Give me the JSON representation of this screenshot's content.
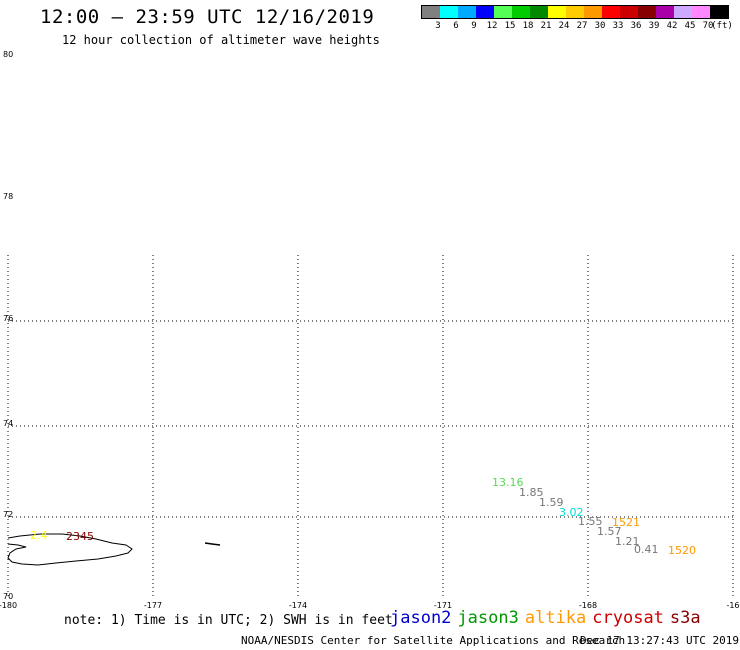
{
  "header": {
    "title": "12:00 – 23:59 UTC 12/16/2019",
    "subtitle": "12 hour collection of altimeter wave heights"
  },
  "colorbar": {
    "colors": [
      "#808080",
      "#00ffff",
      "#00aaff",
      "#0000ff",
      "#55ff55",
      "#00cc00",
      "#008800",
      "#ffff00",
      "#ffcc00",
      "#ff9900",
      "#ff0000",
      "#cc0000",
      "#880000",
      "#aa00aa",
      "#ccaaff",
      "#ff88ff",
      "#000000"
    ],
    "ticks": [
      "3",
      "6",
      "9",
      "12",
      "15",
      "18",
      "21",
      "24",
      "27",
      "30",
      "33",
      "36",
      "39",
      "42",
      "45",
      "70",
      "(ft)"
    ]
  },
  "map": {
    "lat_labels": [
      "80",
      "78",
      "76",
      "74",
      "72",
      "70"
    ],
    "lon_labels": [
      "-180",
      "-177",
      "-174",
      "-171",
      "-168",
      "-16"
    ],
    "observations": [
      {
        "text": "13.16",
        "color": "#55dd55"
      },
      {
        "text": "1.85",
        "color": "#777777"
      },
      {
        "text": "1.59",
        "color": "#777777"
      },
      {
        "text": "3.02",
        "color": "#00dddd"
      },
      {
        "text": "1.55",
        "color": "#777777"
      },
      {
        "text": "1.57",
        "color": "#777777"
      },
      {
        "text": "1.21",
        "color": "#777777"
      },
      {
        "text": "0.41",
        "color": "#777777"
      },
      {
        "text": "2.4",
        "color": "#ffff00"
      }
    ],
    "times": [
      {
        "text": "1521",
        "color": "#ff9900"
      },
      {
        "text": "1520",
        "color": "#ff9900"
      },
      {
        "text": "2345",
        "color": "#880000"
      }
    ]
  },
  "footer": {
    "note": "note: 1) Time is in UTC; 2) SWH is in feet",
    "satellites": [
      {
        "name": "jason2",
        "color": "#0000cc"
      },
      {
        "name": "jason3",
        "color": "#009900"
      },
      {
        "name": "altika",
        "color": "#ff9900"
      },
      {
        "name": "cryosat",
        "color": "#cc0000"
      },
      {
        "name": "s3a",
        "color": "#880000"
      }
    ],
    "credit": "NOAA/NESDIS Center for Satellite Applications and Research",
    "timestamp": "Dec 17 13:27:43 UTC 2019"
  }
}
